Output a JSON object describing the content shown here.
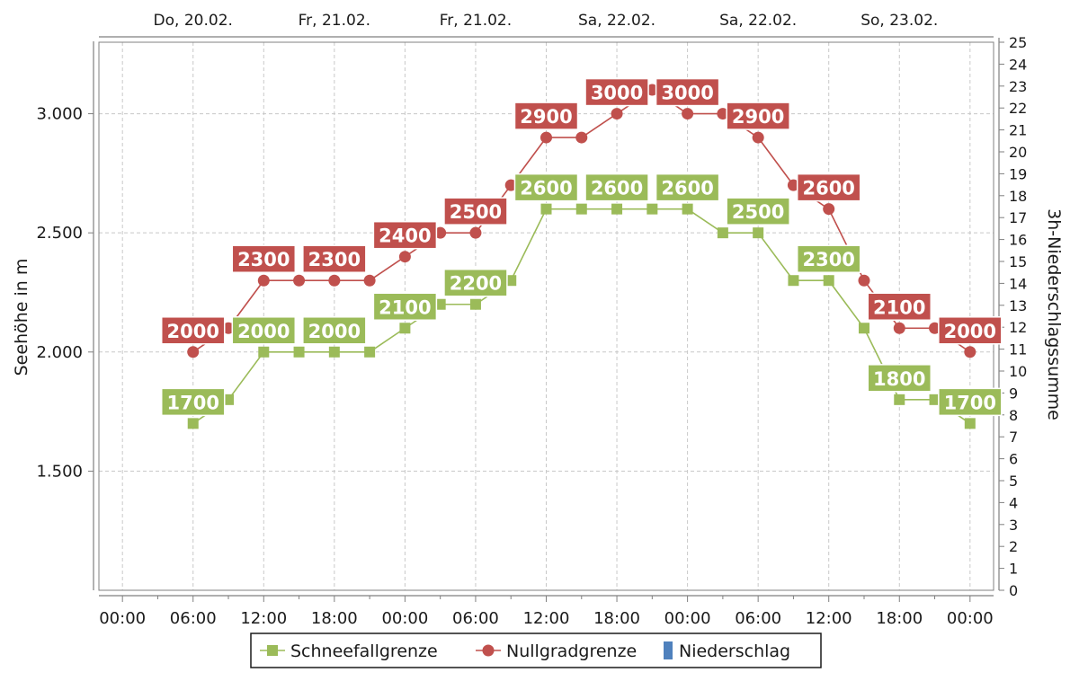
{
  "chart_data": {
    "type": "line",
    "ylabel_left": "Seehöhe in m",
    "ylabel_right": "3h-Niederschlagssumme",
    "y_left_ticks": [
      "1.500",
      "2.000",
      "2.500",
      "3.000"
    ],
    "y_left_tick_values": [
      1500,
      2000,
      2500,
      3000
    ],
    "ylim_left": [
      1000,
      3300
    ],
    "ylim_right": [
      0,
      25
    ],
    "y_right_ticks": [
      "0",
      "1",
      "2",
      "3",
      "4",
      "5",
      "6",
      "7",
      "8",
      "9",
      "10",
      "11",
      "12",
      "13",
      "14",
      "15",
      "16",
      "17",
      "18",
      "19",
      "20",
      "21",
      "22",
      "23",
      "24",
      "25"
    ],
    "x_tick_labels": [
      "00:00",
      "06:00",
      "12:00",
      "18:00",
      "00:00",
      "06:00",
      "12:00",
      "18:00",
      "00:00",
      "06:00",
      "12:00",
      "18:00",
      "00:00"
    ],
    "x_range_hours": [
      -2,
      74
    ],
    "date_labels": [
      {
        "text": "Do, 20.02.",
        "hour": 6
      },
      {
        "text": "Fr, 21.02.",
        "hour": 18
      },
      {
        "text": "Fr, 21.02.",
        "hour": 30
      },
      {
        "text": "Sa, 22.02.",
        "hour": 42
      },
      {
        "text": "Sa, 22.02.",
        "hour": 54
      },
      {
        "text": "So, 23.02.",
        "hour": 66
      }
    ],
    "grid": true,
    "legend_position": "bottom-center",
    "series": [
      {
        "name": "Schneefallgrenze",
        "color": "#9bbb59",
        "marker": "square",
        "x_hours": [
          6,
          9,
          12,
          15,
          18,
          21,
          24,
          27,
          30,
          33,
          36,
          39,
          42,
          45,
          48,
          51,
          54,
          57,
          60,
          63,
          66,
          69,
          72
        ],
        "values": [
          1700,
          1800,
          2000,
          2000,
          2000,
          2000,
          2100,
          2200,
          2200,
          2300,
          2600,
          2600,
          2600,
          2600,
          2600,
          2500,
          2500,
          2300,
          2300,
          2100,
          1800,
          1800,
          1700
        ],
        "labels": [
          {
            "text": "1700",
            "hour": 6
          },
          {
            "text": "2000",
            "hour": 12
          },
          {
            "text": "2000",
            "hour": 18
          },
          {
            "text": "2100",
            "hour": 24
          },
          {
            "text": "2200",
            "hour": 30
          },
          {
            "text": "2600",
            "hour": 36
          },
          {
            "text": "2600",
            "hour": 42
          },
          {
            "text": "2600",
            "hour": 48
          },
          {
            "text": "2500",
            "hour": 54
          },
          {
            "text": "2300",
            "hour": 60
          },
          {
            "text": "1800",
            "hour": 66
          },
          {
            "text": "1700",
            "hour": 72
          }
        ]
      },
      {
        "name": "Nullgradgrenze",
        "color": "#c0504d",
        "marker": "circle",
        "x_hours": [
          6,
          9,
          12,
          15,
          18,
          21,
          24,
          27,
          30,
          33,
          36,
          39,
          42,
          45,
          48,
          51,
          54,
          57,
          60,
          63,
          66,
          69,
          72
        ],
        "values": [
          2000,
          2100,
          2300,
          2300,
          2300,
          2300,
          2400,
          2500,
          2500,
          2700,
          2900,
          2900,
          3000,
          3100,
          3000,
          3000,
          2900,
          2700,
          2600,
          2300,
          2100,
          2100,
          2000
        ],
        "labels": [
          {
            "text": "2000",
            "hour": 6
          },
          {
            "text": "2300",
            "hour": 12
          },
          {
            "text": "2300",
            "hour": 18
          },
          {
            "text": "2400",
            "hour": 24
          },
          {
            "text": "2500",
            "hour": 30
          },
          {
            "text": "2900",
            "hour": 36
          },
          {
            "text": "3000",
            "hour": 42
          },
          {
            "text": "3000",
            "hour": 48
          },
          {
            "text": "2900",
            "hour": 54
          },
          {
            "text": "2600",
            "hour": 60
          },
          {
            "text": "2100",
            "hour": 66
          },
          {
            "text": "2000",
            "hour": 72
          }
        ]
      },
      {
        "name": "Niederschlag",
        "color": "#4f81bd",
        "marker": "bar",
        "values": []
      }
    ],
    "legend": [
      {
        "label": "Schneefallgrenze",
        "color": "#9bbb59",
        "marker": "square"
      },
      {
        "label": "Nullgradgrenze",
        "color": "#c0504d",
        "marker": "circle"
      },
      {
        "label": "Niederschlag",
        "color": "#4f81bd",
        "marker": "bar"
      }
    ]
  }
}
